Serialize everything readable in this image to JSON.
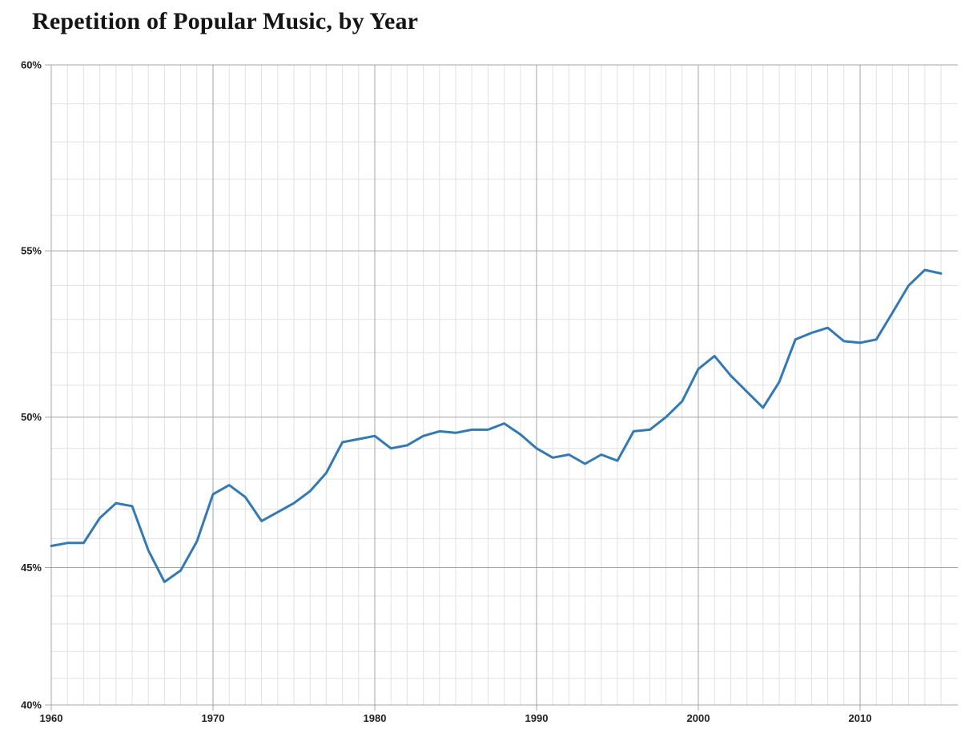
{
  "title": "Repetition of Popular Music, by Year",
  "chart_data": {
    "type": "line",
    "title": "Repetition of Popular Music, by Year",
    "xlabel": "",
    "ylabel": "",
    "x": [
      1960,
      1961,
      1962,
      1963,
      1964,
      1965,
      1966,
      1967,
      1968,
      1969,
      1970,
      1971,
      1972,
      1973,
      1974,
      1975,
      1976,
      1977,
      1978,
      1979,
      1980,
      1981,
      1982,
      1983,
      1984,
      1985,
      1986,
      1987,
      1988,
      1989,
      1990,
      1991,
      1992,
      1993,
      1994,
      1995,
      1996,
      1997,
      1998,
      1999,
      2000,
      2001,
      2002,
      2003,
      2004,
      2005,
      2006,
      2007,
      2008,
      2009,
      2010,
      2011,
      2012,
      2013,
      2014,
      2015
    ],
    "values": [
      45.75,
      45.85,
      45.85,
      46.7,
      47.2,
      47.1,
      45.6,
      44.5,
      44.9,
      45.9,
      47.5,
      47.8,
      47.4,
      46.6,
      46.9,
      47.2,
      47.6,
      48.2,
      49.2,
      49.3,
      49.4,
      49.0,
      49.1,
      49.4,
      49.55,
      49.5,
      49.6,
      49.6,
      49.8,
      49.45,
      49.0,
      48.7,
      48.8,
      48.5,
      48.8,
      48.6,
      49.55,
      49.6,
      50.0,
      50.5,
      51.5,
      51.9,
      51.3,
      50.8,
      50.3,
      51.1,
      52.4,
      52.6,
      52.75,
      52.35,
      52.3,
      52.4,
      53.2,
      54.0,
      54.45,
      54.35
    ],
    "value_unit": "%",
    "ylim": [
      40,
      60
    ],
    "xlim": [
      1960,
      2015.6
    ],
    "y_scale": "compressed-percentage (y position proportional to -log10(1-p), spacing widens toward top)",
    "grid": "minor gridlines every 1% and every 1 year; major gridlines every 5% and every 10 years",
    "legend": "none",
    "y_ticks": [
      {
        "value": 40,
        "label": "40%"
      },
      {
        "value": 45,
        "label": "45%"
      },
      {
        "value": 50,
        "label": "50%"
      },
      {
        "value": 55,
        "label": "55%"
      },
      {
        "value": 60,
        "label": "60%"
      }
    ],
    "x_ticks": [
      {
        "value": 1960,
        "label": "1960"
      },
      {
        "value": 1970,
        "label": "1970"
      },
      {
        "value": 1980,
        "label": "1980"
      },
      {
        "value": 1990,
        "label": "1990"
      },
      {
        "value": 2000,
        "label": "2000"
      },
      {
        "value": 2010,
        "label": "2010"
      }
    ],
    "colors": {
      "line": "#3279b5",
      "minor_grid": "#e1e1e1",
      "major_grid": "#a5a5a5",
      "tick_label": "#1f1f1f",
      "background": "#ffffff"
    },
    "line_width": 3
  }
}
